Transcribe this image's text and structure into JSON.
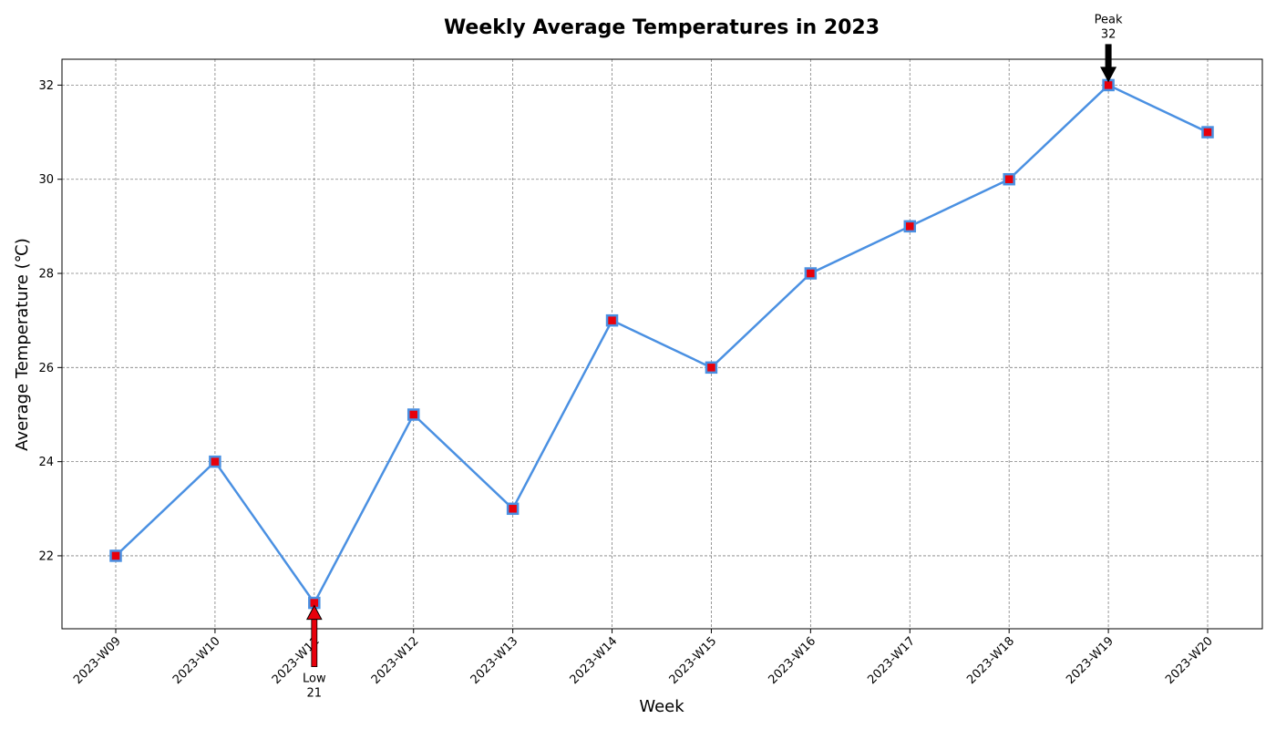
{
  "chart_data": {
    "type": "line",
    "title": "Weekly Average Temperatures in 2023",
    "xlabel": "Week",
    "ylabel": "Average Temperature (℃)",
    "categories": [
      "2023-W09",
      "2023-W10",
      "2023-W11",
      "2023-W12",
      "2023-W13",
      "2023-W14",
      "2023-W15",
      "2023-W16",
      "2023-W17",
      "2023-W18",
      "2023-W19",
      "2023-W20"
    ],
    "values": [
      22,
      24,
      21,
      25,
      23,
      27,
      26,
      28,
      29,
      30,
      32,
      31
    ],
    "ylim": [
      20.45,
      32.55
    ],
    "yticks": [
      22,
      24,
      26,
      28,
      30,
      32
    ],
    "grid": true,
    "legend": null,
    "line_color": "#4a90e2",
    "marker_color": "#e8000b",
    "marker_edge_color": "#4a90e2",
    "annotations": [
      {
        "category": "2023-W19",
        "text_line1": "Peak",
        "text_line2": "32",
        "arrow_color": "#000000",
        "position": "above"
      },
      {
        "category": "2023-W11",
        "text_line1": "Low",
        "text_line2": "21",
        "arrow_color": "#e8000b",
        "position": "below"
      }
    ]
  }
}
